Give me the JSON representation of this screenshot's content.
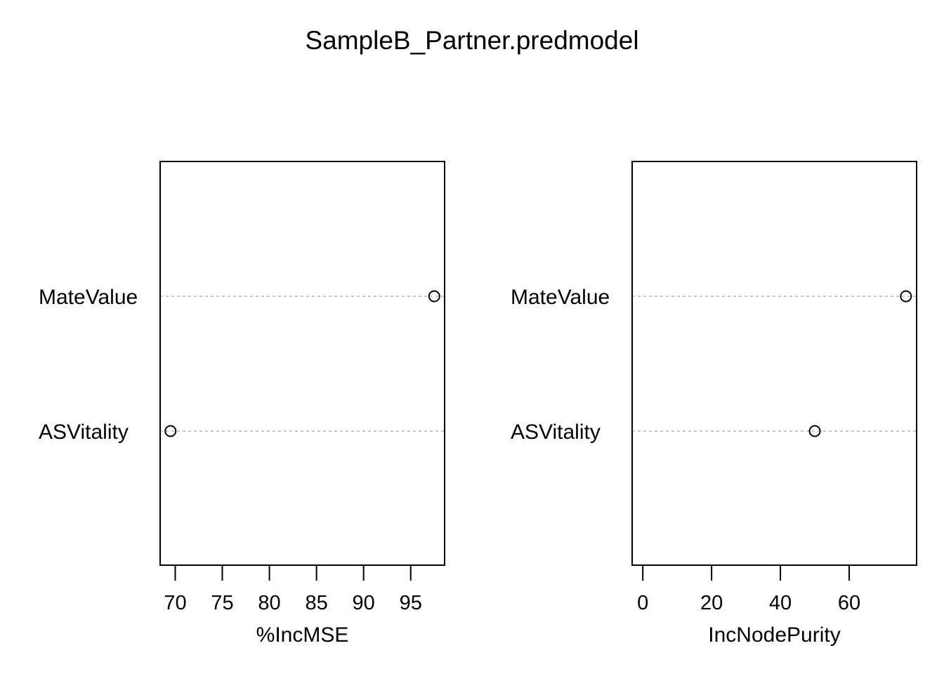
{
  "title": "SampleB_Partner.predmodel",
  "colors": {
    "points": "#000000",
    "frame": "#000000",
    "guide": "#bbbbbb",
    "background": "#ffffff"
  },
  "chart_data": [
    {
      "type": "scatter",
      "variant": "dotchart",
      "xlabel": "%IncMSE",
      "ylabel": "",
      "categories": [
        "MateValue",
        "ASVitality"
      ],
      "values": [
        97.5,
        69.5
      ],
      "xlim": [
        68.4,
        98.6
      ],
      "xticks": [
        70,
        75,
        80,
        85,
        90,
        95
      ],
      "grid": false,
      "legend": "none"
    },
    {
      "type": "scatter",
      "variant": "dotchart",
      "xlabel": "IncNodePurity",
      "ylabel": "",
      "categories": [
        "MateValue",
        "ASVitality"
      ],
      "values": [
        76.5,
        50
      ],
      "xlim": [
        -3.1,
        79.6
      ],
      "xticks": [
        0,
        20,
        40,
        60
      ],
      "grid": false,
      "legend": "none"
    }
  ]
}
